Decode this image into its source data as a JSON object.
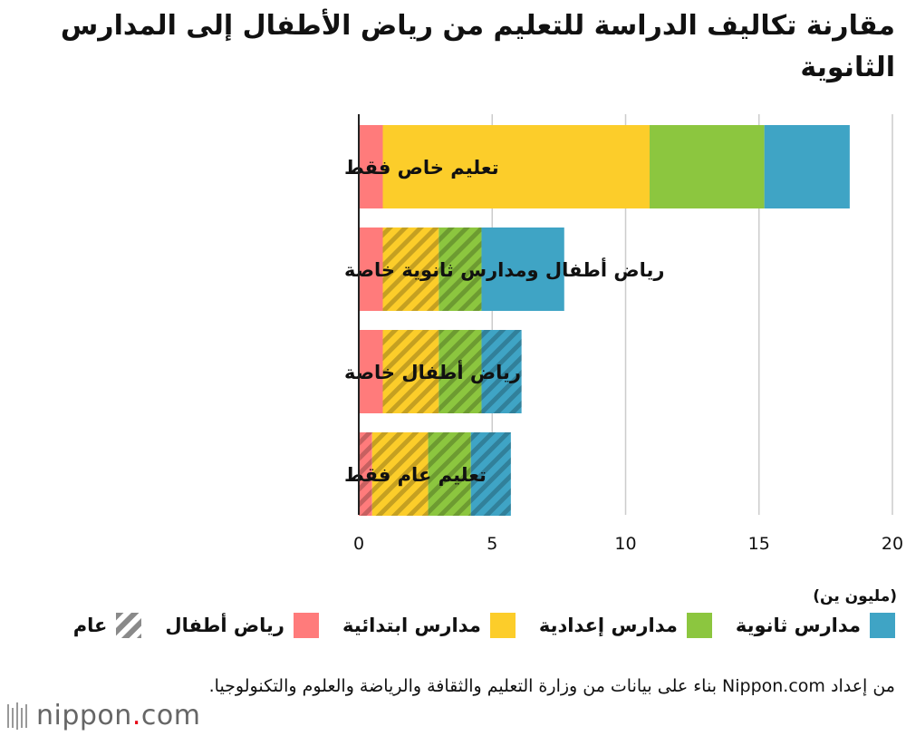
{
  "title": "مقارنة تكاليف الدراسة للتعليم من رياض الأطفال إلى المدارس الثانوية",
  "unit_label": "(مليون ين)",
  "colors": {
    "kindergarten": "#ff7b7b",
    "elementary": "#fccd2a",
    "junior_high": "#8cc63f",
    "high_school": "#3fa4c5",
    "hatch_overlay": "#7a7a00",
    "axis": "#222222",
    "grid": "#cccccc"
  },
  "legend": [
    {
      "key": "high_school",
      "label": "مدارس ثانوية",
      "icon": "solid-swatch"
    },
    {
      "key": "junior_high",
      "label": "مدارس إعدادية",
      "icon": "solid-swatch"
    },
    {
      "key": "elementary",
      "label": "مدارس ابتدائية",
      "icon": "solid-swatch"
    },
    {
      "key": "kindergarten",
      "label": "رياض أطفال",
      "icon": "solid-swatch"
    },
    {
      "key": "public",
      "label": "عام",
      "icon": "hatched-swatch"
    }
  ],
  "source": "من إعداد Nippon.com بناء على بيانات من وزارة التعليم والثقافة والرياضة والعلوم والتكنولوجيا.",
  "logo": {
    "text": "nippon",
    "dot": ".",
    "suffix": "com"
  },
  "chart_data": {
    "type": "bar",
    "orientation": "horizontal",
    "stacked": true,
    "categories": [
      "تعليم خاص فقط",
      "رياض أطفال ومدارس ثانوية خاصة",
      "رياض أطفال خاصة",
      "تعليم عام فقط"
    ],
    "series": [
      {
        "name": "رياض أطفال",
        "key": "kindergarten",
        "values": [
          0.9,
          0.9,
          0.9,
          0.5
        ],
        "public": [
          false,
          false,
          false,
          true
        ]
      },
      {
        "name": "مدارس ابتدائية",
        "key": "elementary",
        "values": [
          10.0,
          2.1,
          2.1,
          2.1
        ],
        "public": [
          false,
          true,
          true,
          true
        ]
      },
      {
        "name": "مدارس إعدادية",
        "key": "junior_high",
        "values": [
          4.3,
          1.6,
          1.6,
          1.6
        ],
        "public": [
          false,
          true,
          true,
          true
        ]
      },
      {
        "name": "مدارس ثانوية",
        "key": "high_school",
        "values": [
          3.2,
          3.1,
          1.5,
          1.5
        ],
        "public": [
          false,
          false,
          true,
          true
        ]
      }
    ],
    "xlim": [
      0,
      20
    ],
    "xticks": [
      0,
      5,
      10,
      15,
      20
    ],
    "xlabel": "(مليون ين)",
    "grid": true,
    "legend_position": "bottom"
  }
}
